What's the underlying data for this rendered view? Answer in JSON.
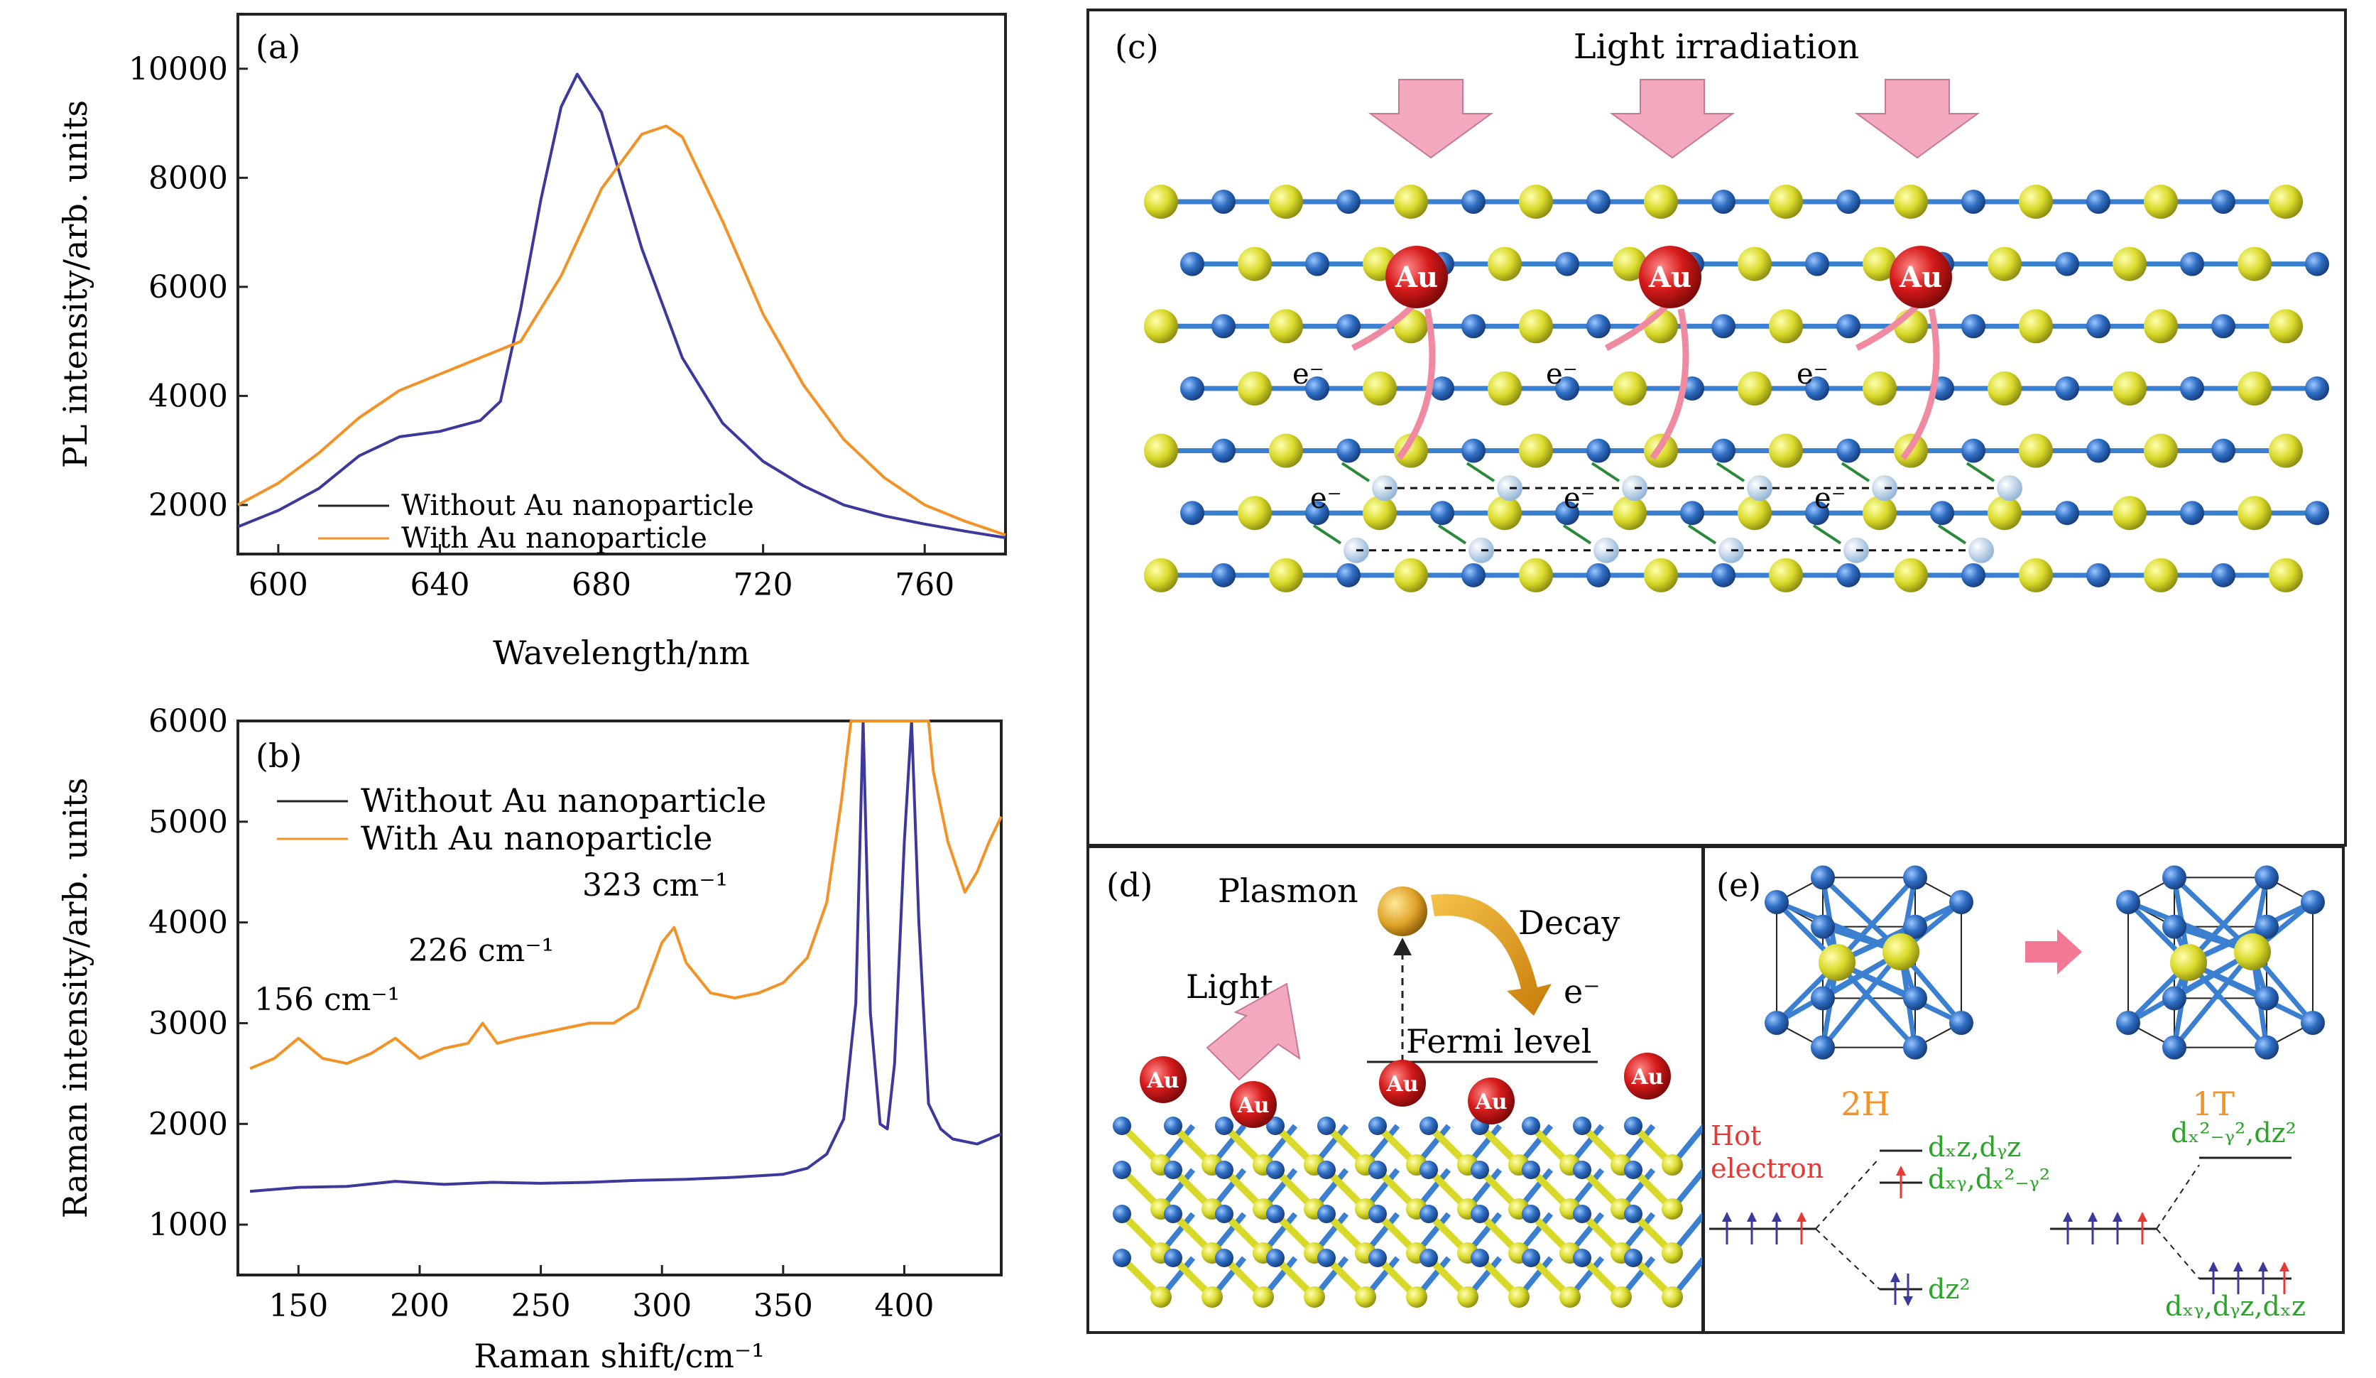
{
  "panel_a": {
    "tag": "(a)",
    "legend": [
      "Without Au nanoparticle",
      "With Au nanoparticle"
    ],
    "colors": {
      "without": "#3b3a9c",
      "with": "#f39227"
    },
    "chart_data": {
      "type": "line",
      "xlabel": "Wavelength/nm",
      "ylabel": "PL intensity/arb. units",
      "xlim": [
        590,
        780
      ],
      "ylim": [
        1100,
        11000
      ],
      "xticks": [
        600,
        640,
        680,
        720,
        760
      ],
      "yticks": [
        2000,
        4000,
        6000,
        8000,
        10000
      ],
      "series": [
        {
          "name": "Without Au nanoparticle",
          "x": [
            590,
            600,
            610,
            620,
            630,
            640,
            650,
            655,
            660,
            665,
            670,
            674,
            680,
            690,
            700,
            710,
            720,
            730,
            740,
            750,
            760,
            770,
            780
          ],
          "y": [
            1600,
            1900,
            2300,
            2900,
            3250,
            3350,
            3550,
            3900,
            5600,
            7600,
            9300,
            9900,
            9200,
            6700,
            4700,
            3500,
            2800,
            2350,
            2000,
            1800,
            1650,
            1520,
            1400
          ]
        },
        {
          "name": "With Au nanoparticle",
          "x": [
            590,
            600,
            610,
            620,
            630,
            640,
            650,
            660,
            670,
            680,
            690,
            696,
            700,
            710,
            720,
            730,
            740,
            750,
            760,
            770,
            780
          ],
          "y": [
            2000,
            2400,
            2950,
            3600,
            4100,
            4400,
            4700,
            5000,
            6200,
            7800,
            8800,
            8950,
            8750,
            7200,
            5500,
            4200,
            3200,
            2500,
            2000,
            1700,
            1450
          ]
        }
      ]
    }
  },
  "panel_b": {
    "tag": "(b)",
    "legend": [
      "Without Au nanoparticle",
      "With Au nanoparticle"
    ],
    "annotations": [
      "156 cm⁻¹",
      "226 cm⁻¹",
      "323 cm⁻¹"
    ],
    "colors": {
      "without": "#3b3a9c",
      "with": "#f39227"
    },
    "chart_data": {
      "type": "line",
      "xlabel": "Raman shift/cm⁻¹",
      "ylabel": "Raman intensity/arb. units",
      "xlim": [
        125,
        440
      ],
      "ylim": [
        500,
        6000
      ],
      "xticks": [
        150,
        200,
        250,
        300,
        350,
        400
      ],
      "yticks": [
        1000,
        2000,
        3000,
        4000,
        5000,
        6000
      ],
      "series": [
        {
          "name": "Without Au nanoparticle",
          "x": [
            130,
            150,
            170,
            190,
            210,
            230,
            250,
            270,
            290,
            310,
            330,
            350,
            360,
            368,
            375,
            380,
            383,
            386,
            390,
            393,
            396,
            400,
            403,
            406,
            410,
            415,
            420,
            430,
            440
          ],
          "y": [
            1330,
            1370,
            1380,
            1430,
            1400,
            1420,
            1410,
            1420,
            1440,
            1450,
            1470,
            1500,
            1560,
            1700,
            2050,
            3200,
            6500,
            3100,
            2000,
            1950,
            2600,
            4800,
            6500,
            4000,
            2200,
            1950,
            1850,
            1800,
            1900
          ]
        },
        {
          "name": "With Au nanoparticle",
          "x": [
            130,
            140,
            150,
            160,
            170,
            180,
            190,
            200,
            210,
            220,
            226,
            232,
            240,
            250,
            260,
            270,
            280,
            290,
            300,
            305,
            310,
            320,
            330,
            340,
            350,
            360,
            368,
            374,
            378,
            380,
            410,
            412,
            418,
            425,
            430,
            435,
            440
          ],
          "y": [
            2550,
            2650,
            2850,
            2650,
            2600,
            2700,
            2850,
            2650,
            2750,
            2800,
            3000,
            2800,
            2850,
            2900,
            2950,
            3000,
            3000,
            3150,
            3800,
            3950,
            3600,
            3300,
            3250,
            3300,
            3400,
            3650,
            4200,
            5200,
            6000,
            6000,
            6000,
            5500,
            4800,
            4300,
            4500,
            4800,
            5050
          ]
        }
      ]
    }
  },
  "panel_c": {
    "tag": "(c)",
    "title": "Light irradiation",
    "au_label": "Au",
    "electron_label": "e⁻"
  },
  "panel_d": {
    "tag": "(d)",
    "plasmon": "Plasmon",
    "decay": "Decay",
    "light": "Light",
    "fermi": "Fermi level",
    "electron": "e⁻",
    "au_label": "Au"
  },
  "panel_e": {
    "tag": "(e)",
    "phase_2h": "2H",
    "phase_1t": "1T",
    "hot_electron": [
      "Hot",
      "electron"
    ],
    "orbitals_2h": [
      "dₓz,dᵧz",
      "dₓᵧ,dₓ²₋ᵧ²",
      "dz²"
    ],
    "orbitals_1t": [
      "dₓ²₋ᵧ²,dz²",
      "dₓᵧ,dᵧz,dₓz"
    ],
    "colors": {
      "orange": "#f39227",
      "green": "#2aa52a",
      "red": "#e53935",
      "blue_ball": "#2f6fc4",
      "yellow_ball": "#d9d92a"
    }
  }
}
